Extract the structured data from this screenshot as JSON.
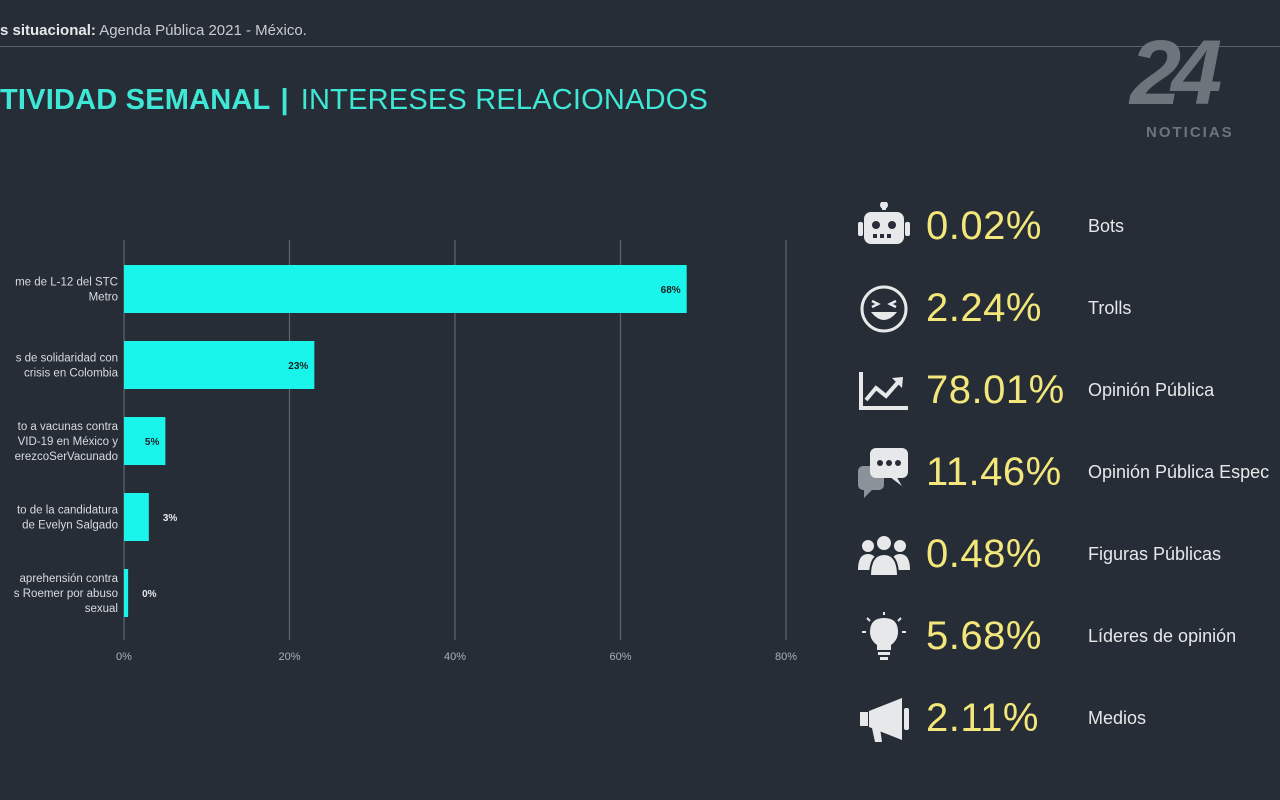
{
  "header": {
    "prefix": "s situacional:",
    "subtitle": "Agenda Pública 2021 - México."
  },
  "title": {
    "bold": "TIVIDAD SEMANAL",
    "separator": "|",
    "accent": "INTERESES RELACIONADOS"
  },
  "logo": {
    "number": "24",
    "label": "NOTICIAS"
  },
  "colors": {
    "background": "#262d36",
    "accent": "#3fe8d6",
    "bar": "#19f5ea",
    "value": "#f3e67a"
  },
  "chart_data": {
    "type": "bar",
    "orientation": "horizontal",
    "categories": [
      [
        "me de L-12 del STC",
        "Metro"
      ],
      [
        "s de solidaridad con",
        "crisis en Colombia"
      ],
      [
        "to a vacunas contra",
        "VID-19 en México y",
        "erezcoSerVacunado"
      ],
      [
        "to de la candidatura",
        "de Evelyn Salgado"
      ],
      [
        "aprehensión contra",
        "s Roemer por abuso",
        "sexual"
      ]
    ],
    "values": [
      68,
      23,
      5,
      3,
      0.5
    ],
    "data_labels": [
      "68%",
      "23%",
      "5%",
      "3%",
      "0%"
    ],
    "xlim": [
      0,
      80
    ],
    "xticks": [
      "0%",
      "20%",
      "40%",
      "60%",
      "80%"
    ],
    "grid": true
  },
  "stats": [
    {
      "icon": "robot-icon",
      "value": "0.02%",
      "label": "Bots"
    },
    {
      "icon": "laughing-face-icon",
      "value": "2.24%",
      "label": "Trolls"
    },
    {
      "icon": "trend-chart-icon",
      "value": "78.01%",
      "label": "Opinión Pública"
    },
    {
      "icon": "chat-bubbles-icon",
      "value": "11.46%",
      "label": "Opinión Pública Espec"
    },
    {
      "icon": "people-group-icon",
      "value": "0.48%",
      "label": "Figuras Públicas"
    },
    {
      "icon": "lightbulb-icon",
      "value": "5.68%",
      "label": "Líderes de opinión"
    },
    {
      "icon": "megaphone-icon",
      "value": "2.11%",
      "label": "Medios"
    }
  ]
}
